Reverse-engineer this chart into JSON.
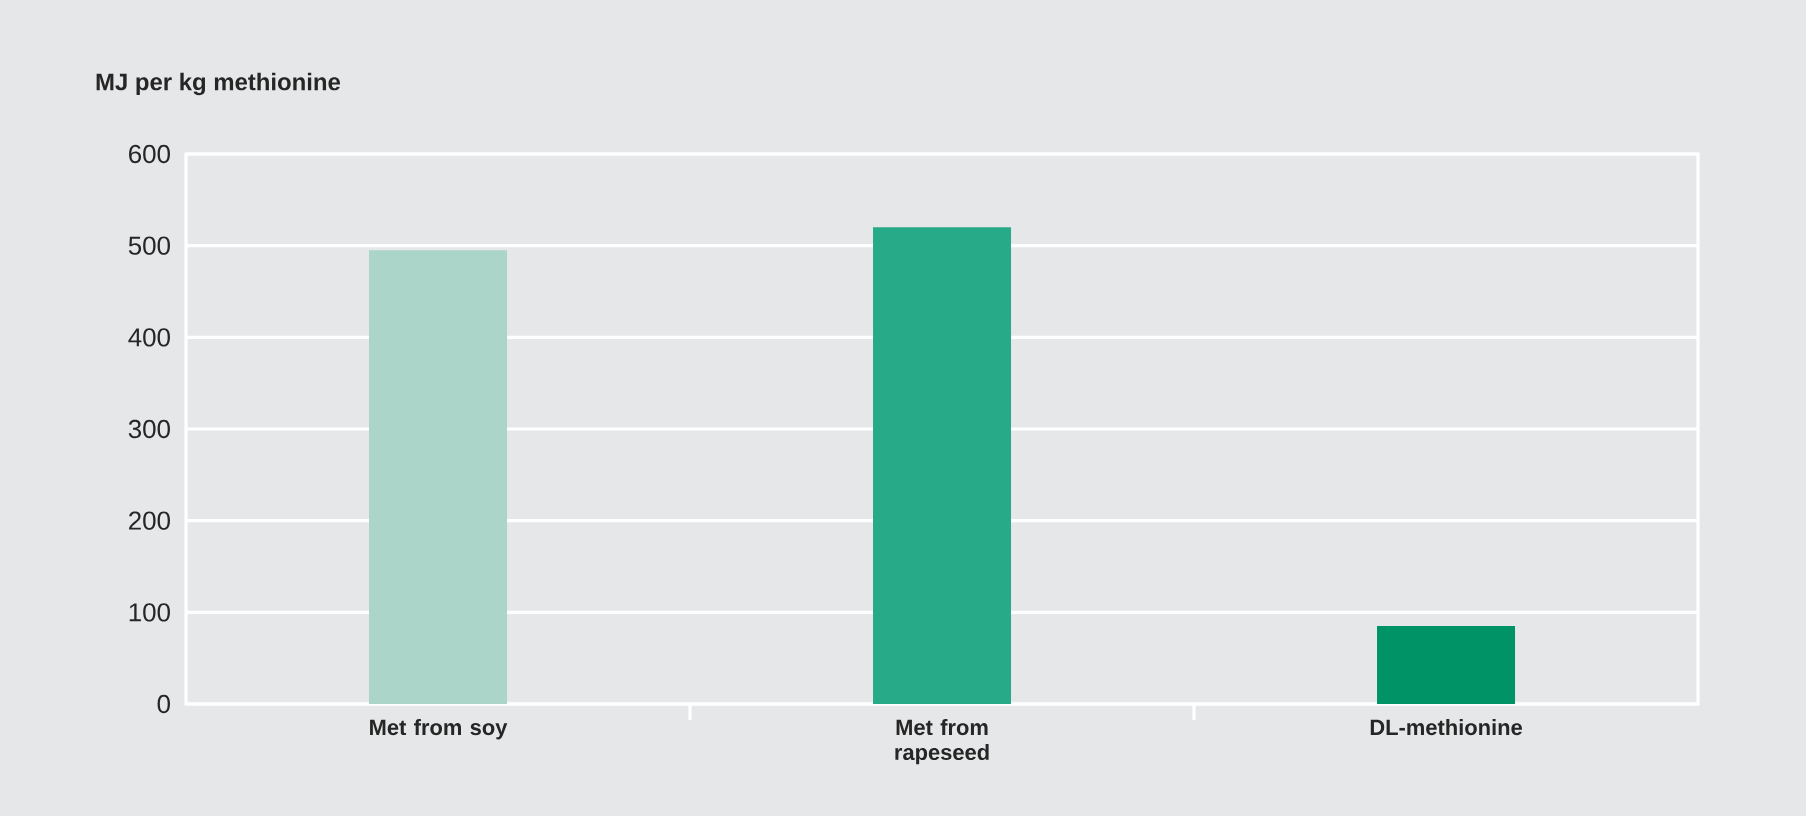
{
  "chart_data": {
    "type": "bar",
    "title": "MJ per kg methionine",
    "categories": [
      "Met from soy",
      "Met from rapeseed",
      "DL-methionine"
    ],
    "values": [
      495,
      520,
      85
    ],
    "colors": [
      "#abd5c8",
      "#27aa88",
      "#009366"
    ],
    "ylim": [
      0,
      600
    ],
    "yticks": [
      0,
      100,
      200,
      300,
      400,
      500,
      600
    ],
    "grid": "y"
  }
}
